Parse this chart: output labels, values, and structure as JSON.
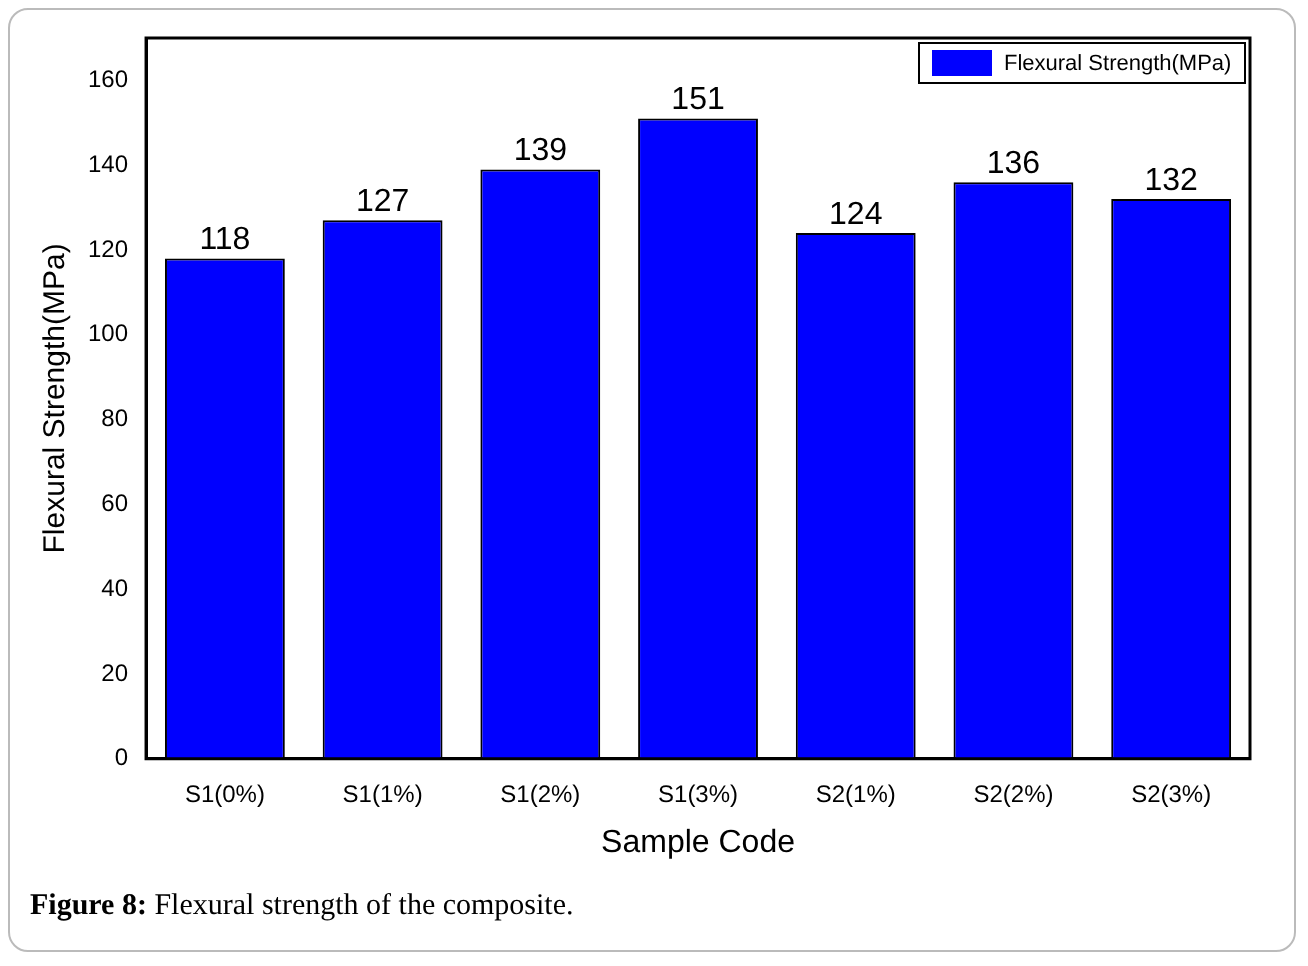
{
  "chart_data": {
    "type": "bar",
    "xlabel": "Sample Code",
    "ylabel": "Flexural Strength(MPa)",
    "categories": [
      "S1(0%)",
      "S1(1%)",
      "S1(2%)",
      "S1(3%)",
      "S2(1%)",
      "S2(2%)",
      "S2(3%)"
    ],
    "series": [
      {
        "name": "Flexural Strength(MPa)",
        "color": "#0000ff",
        "values": [
          118,
          127,
          139,
          151,
          124,
          136,
          132
        ]
      }
    ],
    "ylim": [
      0,
      170
    ],
    "yticks": [
      0,
      20,
      40,
      60,
      80,
      100,
      120,
      140,
      160
    ],
    "grid": false,
    "legend": "top right",
    "data_labels": true,
    "annotations": [
      "Figure 8: Flexural strength of the composite."
    ]
  }
}
